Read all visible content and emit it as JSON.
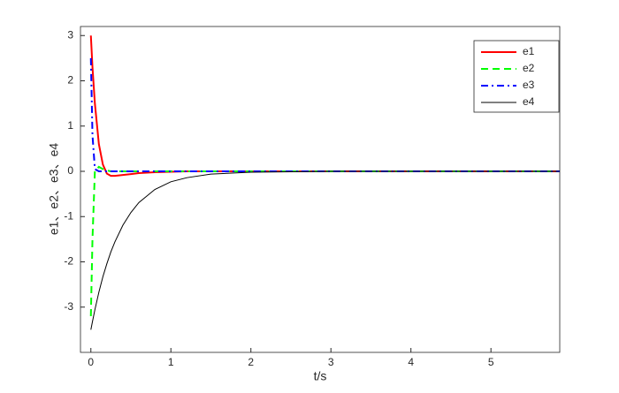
{
  "chart_data": {
    "type": "line",
    "x_label": "t/s",
    "y_label": "e1、e2、e3、e4",
    "x": [
      0,
      0.02,
      0.05,
      0.1,
      0.15,
      0.2,
      0.25,
      0.3,
      0.4,
      0.5,
      0.6,
      0.8,
      1.0,
      1.2,
      1.5,
      2,
      3,
      4,
      5,
      5.86
    ],
    "series": [
      {
        "name": "e1",
        "color": "#ff0000",
        "dash": "solid",
        "width": 2,
        "values": [
          3,
          2.3,
          1.5,
          0.6,
          0.15,
          -0.05,
          -0.1,
          -0.1,
          -0.08,
          -0.06,
          -0.04,
          -0.02,
          -0.01,
          0,
          0,
          0,
          0,
          0,
          0,
          0
        ]
      },
      {
        "name": "e2",
        "color": "#00ff00",
        "dash": "dashed",
        "width": 2,
        "values": [
          -3.2,
          -1.5,
          0,
          0.1,
          0.05,
          0.02,
          0,
          0,
          0,
          0,
          0,
          0,
          0,
          0,
          0,
          0,
          0,
          0,
          0,
          0
        ]
      },
      {
        "name": "e3",
        "color": "#0000ff",
        "dash": "dashdot",
        "width": 2,
        "values": [
          2.5,
          0.8,
          0.05,
          0,
          0,
          0,
          0,
          0,
          0,
          0,
          0,
          0,
          0,
          0,
          0,
          0,
          0,
          0,
          0,
          0
        ]
      },
      {
        "name": "e4",
        "color": "#000000",
        "dash": "solid",
        "width": 1,
        "values": [
          -3.5,
          -3.32,
          -3.06,
          -2.67,
          -2.33,
          -2.04,
          -1.78,
          -1.56,
          -1.19,
          -0.91,
          -0.69,
          -0.4,
          -0.23,
          -0.14,
          -0.06,
          -0.02,
          0,
          0,
          0,
          0
        ]
      }
    ],
    "xlim": [
      -0.13,
      5.86
    ],
    "xticks": [
      0,
      1,
      2,
      3,
      4,
      5
    ],
    "ylim": [
      -4,
      3.2
    ],
    "yticks": [
      -3,
      -2,
      -1,
      0,
      1,
      2,
      3
    ],
    "grid": false,
    "legend": "northeast"
  }
}
